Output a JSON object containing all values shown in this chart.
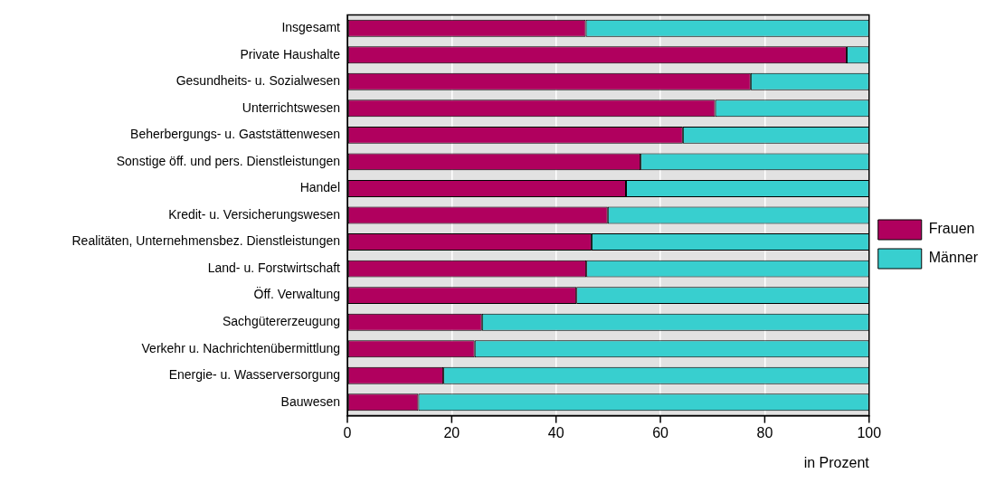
{
  "chart_data": {
    "type": "bar",
    "orientation": "horizontal",
    "stacked": true,
    "categories": [
      "Insgesamt",
      "Private Haushalte",
      "Gesundheits- u. Sozialwesen",
      "Unterrichtswesen",
      "Beherbergungs- u. Gaststättenwesen",
      "Sonstige öff. und pers. Dienstleistungen",
      "Handel",
      "Kredit- u. Versicherungswesen",
      "Realitäten, Unternehmensbez. Dienstleistungen",
      "Land- u. Forstwirtschaft",
      "Öff. Verwaltung",
      "Sachgütererzeugung",
      "Verkehr u. Nachrichtenübermittlung",
      "Energie- u. Wasserversorgung",
      "Bauwesen"
    ],
    "series": [
      {
        "name": "Frauen",
        "color": "#b0005e",
        "values": [
          45.7,
          95.7,
          77.3,
          70.5,
          64.3,
          56.2,
          53.4,
          49.9,
          46.8,
          45.8,
          43.9,
          25.8,
          24.4,
          18.4,
          13.6
        ]
      },
      {
        "name": "Männer",
        "color": "#38cfcf",
        "values": [
          54.3,
          4.3,
          22.7,
          29.5,
          35.7,
          43.8,
          46.6,
          50.1,
          53.2,
          54.2,
          56.1,
          74.2,
          75.6,
          81.6,
          86.4
        ]
      }
    ],
    "xlim": [
      0,
      100
    ],
    "xticks": [
      0,
      20,
      40,
      60,
      80,
      100
    ],
    "xlabel": "in Prozent",
    "grid": "x",
    "legend": "right"
  }
}
